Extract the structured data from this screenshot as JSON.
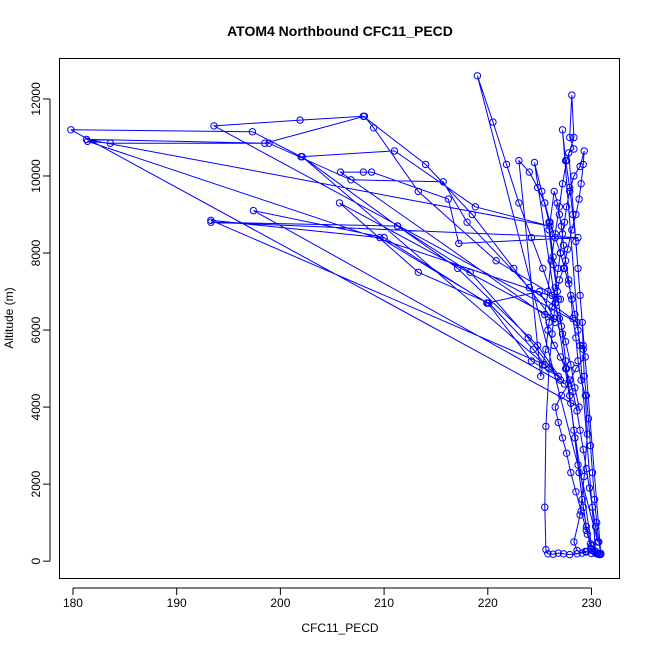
{
  "chart_data": {
    "type": "scatter",
    "title": "ATOM4 Northbound CFC11_PECD",
    "xlabel": "CFC11_PECD",
    "ylabel": "Altitude (m)",
    "xlim": [
      178.7,
      232.7
    ],
    "ylim": [
      -450,
      13050
    ],
    "xticks": [
      180,
      190,
      200,
      210,
      220,
      230
    ],
    "yticks": [
      0,
      2000,
      4000,
      6000,
      8000,
      10000,
      12000
    ],
    "grid": false,
    "legend": "none",
    "point_style": "open-circle",
    "connect_points": true,
    "series": [
      {
        "color": "#0000ff",
        "points": [
          [
            230.5,
            190
          ],
          [
            230.8,
            170
          ],
          [
            230.2,
            260
          ],
          [
            229.9,
            330
          ],
          [
            229.5,
            240
          ],
          [
            229.1,
            210
          ],
          [
            228.6,
            280
          ],
          [
            228.3,
            500
          ],
          [
            228.9,
            1200
          ],
          [
            229.3,
            2200
          ],
          [
            229.6,
            3300
          ],
          [
            229.4,
            4300
          ],
          [
            229.0,
            4700
          ],
          [
            228.7,
            5200
          ],
          [
            228.5,
            5800
          ],
          [
            228.2,
            6300
          ],
          [
            228.0,
            6900
          ],
          [
            227.8,
            7300
          ],
          [
            227.5,
            7800
          ],
          [
            227.3,
            8200
          ],
          [
            227.1,
            8700
          ],
          [
            226.9,
            9000
          ],
          [
            226.7,
            9300
          ],
          [
            226.4,
            9600
          ],
          [
            225.9,
            8600
          ],
          [
            226.3,
            7700
          ],
          [
            226.8,
            6800
          ],
          [
            227.2,
            5900
          ],
          [
            227.6,
            5000
          ],
          [
            228.0,
            4100
          ],
          [
            228.4,
            3200
          ],
          [
            228.8,
            2300
          ],
          [
            229.2,
            1400
          ],
          [
            229.6,
            700
          ],
          [
            230.0,
            320
          ],
          [
            230.3,
            230
          ],
          [
            230.6,
            200
          ],
          [
            230.9,
            180
          ],
          [
            230.7,
            180
          ],
          [
            230.0,
            200
          ],
          [
            229.4,
            250
          ],
          [
            228.6,
            190
          ],
          [
            227.9,
            170
          ],
          [
            227.3,
            190
          ],
          [
            226.8,
            210
          ],
          [
            226.3,
            180
          ],
          [
            225.8,
            190
          ],
          [
            225.6,
            300
          ],
          [
            225.5,
            1400
          ],
          [
            225.6,
            3500
          ],
          [
            225.9,
            5000
          ],
          [
            226.2,
            5900
          ],
          [
            226.5,
            6700
          ],
          [
            226.9,
            7300
          ],
          [
            227.3,
            7600
          ],
          [
            227.7,
            8100
          ],
          [
            228.1,
            8600
          ],
          [
            228.5,
            9000
          ],
          [
            228.8,
            9400
          ],
          [
            229.0,
            9800
          ],
          [
            229.2,
            10300
          ],
          [
            229.3,
            10650
          ],
          [
            228.9,
            10250
          ],
          [
            228.3,
            10000
          ],
          [
            227.9,
            9600
          ],
          [
            227.6,
            9200
          ],
          [
            227.4,
            8800
          ],
          [
            227.2,
            8500
          ],
          [
            227.0,
            8000
          ],
          [
            226.8,
            7600
          ],
          [
            226.5,
            7100
          ],
          [
            226.2,
            6600
          ],
          [
            225.9,
            6200
          ],
          [
            225.6,
            5500
          ],
          [
            225.3,
            5100
          ],
          [
            225.1,
            4800
          ],
          [
            223.0,
            10400
          ],
          [
            224.0,
            10100
          ],
          [
            224.8,
            9700
          ],
          [
            225.5,
            9300
          ],
          [
            226.0,
            8800
          ],
          [
            226.5,
            8400
          ],
          [
            227.0,
            8000
          ],
          [
            227.4,
            7600
          ],
          [
            227.8,
            7200
          ],
          [
            228.1,
            6800
          ],
          [
            228.4,
            6400
          ],
          [
            228.7,
            6000
          ],
          [
            228.9,
            5600
          ],
          [
            229.2,
            5600
          ],
          [
            229.4,
            5300
          ],
          [
            228.5,
            5000
          ],
          [
            227.8,
            4600
          ],
          [
            227.1,
            4300
          ],
          [
            226.5,
            4000
          ],
          [
            226.8,
            3600
          ],
          [
            227.2,
            3200
          ],
          [
            227.6,
            2800
          ],
          [
            228.0,
            2300
          ],
          [
            228.5,
            1800
          ],
          [
            229.0,
            1300
          ],
          [
            229.5,
            800
          ],
          [
            230.0,
            400
          ],
          [
            224.5,
            10350
          ],
          [
            225.2,
            9600
          ],
          [
            225.9,
            8800
          ],
          [
            226.3,
            7900
          ],
          [
            226.7,
            7000
          ],
          [
            227.1,
            6100
          ],
          [
            227.5,
            5200
          ],
          [
            227.9,
            4300
          ],
          [
            228.3,
            3400
          ],
          [
            228.7,
            2500
          ],
          [
            229.1,
            1600
          ],
          [
            229.5,
            900
          ],
          [
            229.9,
            450
          ],
          [
            230.4,
            260
          ],
          [
            227.2,
            11200
          ],
          [
            227.5,
            10400
          ],
          [
            227.9,
            9700
          ],
          [
            228.2,
            9000
          ],
          [
            228.5,
            8300
          ],
          [
            228.7,
            7600
          ],
          [
            228.9,
            6900
          ],
          [
            229.1,
            6200
          ],
          [
            229.2,
            5500
          ],
          [
            229.3,
            4800
          ],
          [
            229.5,
            4300
          ],
          [
            229.7,
            3700
          ],
          [
            229.9,
            3000
          ],
          [
            230.1,
            2300
          ],
          [
            230.3,
            1600
          ],
          [
            230.5,
            1000
          ],
          [
            230.7,
            500
          ],
          [
            230.9,
            200
          ],
          [
            227.8,
            10600
          ],
          [
            228.3,
            10700
          ],
          [
            227.9,
            11000
          ],
          [
            228.1,
            12100
          ],
          [
            228.3,
            11000
          ],
          [
            227.6,
            10400
          ],
          [
            227.2,
            9800
          ],
          [
            226.9,
            9200
          ],
          [
            226.5,
            8500
          ],
          [
            226.1,
            7800
          ],
          [
            225.8,
            7000
          ],
          [
            225.5,
            6400
          ],
          [
            225.8,
            6000
          ],
          [
            226.4,
            5600
          ],
          [
            227.0,
            5300
          ],
          [
            227.5,
            5000
          ],
          [
            227.9,
            4700
          ],
          [
            228.2,
            4400
          ],
          [
            228.6,
            3900
          ],
          [
            228.9,
            3400
          ],
          [
            229.2,
            2900
          ],
          [
            229.5,
            2400
          ],
          [
            229.8,
            1900
          ],
          [
            230.1,
            1400
          ],
          [
            230.4,
            900
          ],
          [
            230.6,
            500
          ],
          [
            219.0,
            12600
          ],
          [
            220.5,
            11400
          ],
          [
            221.8,
            10300
          ],
          [
            223.0,
            9300
          ],
          [
            224.2,
            8400
          ],
          [
            225.3,
            7600
          ],
          [
            226.2,
            6900
          ],
          [
            226.9,
            6300
          ],
          [
            227.5,
            5700
          ],
          [
            228.0,
            5100
          ],
          [
            228.4,
            4500
          ],
          [
            228.8,
            4000
          ],
          [
            179.8,
            11200
          ],
          [
            197.3,
            11150
          ],
          [
            202.0,
            10500
          ],
          [
            211.0,
            10650
          ],
          [
            218.8,
            9200
          ],
          [
            226.0,
            8700
          ],
          [
            181.3,
            10950
          ],
          [
            198.5,
            10850
          ],
          [
            208.1,
            11550
          ],
          [
            209.0,
            11250
          ],
          [
            213.3,
            9600
          ],
          [
            220.8,
            7800
          ],
          [
            227.0,
            6800
          ],
          [
            181.4,
            10900
          ],
          [
            183.6,
            10850
          ],
          [
            198.9,
            10850
          ],
          [
            206.8,
            9900
          ],
          [
            215.7,
            9850
          ],
          [
            218.0,
            8800
          ],
          [
            224.0,
            7100
          ],
          [
            228.6,
            6200
          ],
          [
            193.6,
            11300
          ],
          [
            201.9,
            11450
          ],
          [
            208.0,
            11550
          ],
          [
            214.0,
            10300
          ],
          [
            218.5,
            9000
          ],
          [
            222.5,
            7600
          ],
          [
            226.5,
            6200
          ],
          [
            205.8,
            10100
          ],
          [
            208.0,
            10100
          ],
          [
            208.8,
            10100
          ],
          [
            216.2,
            9400
          ],
          [
            217.2,
            8250
          ],
          [
            228.7,
            8400
          ],
          [
            193.3,
            8800
          ],
          [
            211.3,
            8700
          ],
          [
            217.1,
            7600
          ],
          [
            224.8,
            5600
          ],
          [
            227.4,
            4600
          ],
          [
            197.4,
            9100
          ],
          [
            210.0,
            8400
          ],
          [
            219.9,
            6700
          ],
          [
            225.0,
            7000
          ],
          [
            226.4,
            6300
          ],
          [
            205.7,
            9300
          ],
          [
            213.3,
            7500
          ],
          [
            220.1,
            6700
          ],
          [
            224.4,
            5500
          ],
          [
            225.5,
            5100
          ],
          [
            193.3,
            8850
          ],
          [
            209.6,
            8400
          ],
          [
            220.0,
            6700
          ],
          [
            224.2,
            5200
          ],
          [
            226.8,
            4800
          ],
          [
            202.1,
            10500
          ],
          [
            211.3,
            8700
          ],
          [
            218.3,
            7500
          ],
          [
            223.9,
            5800
          ],
          [
            227.0,
            4700
          ]
        ]
      }
    ]
  }
}
